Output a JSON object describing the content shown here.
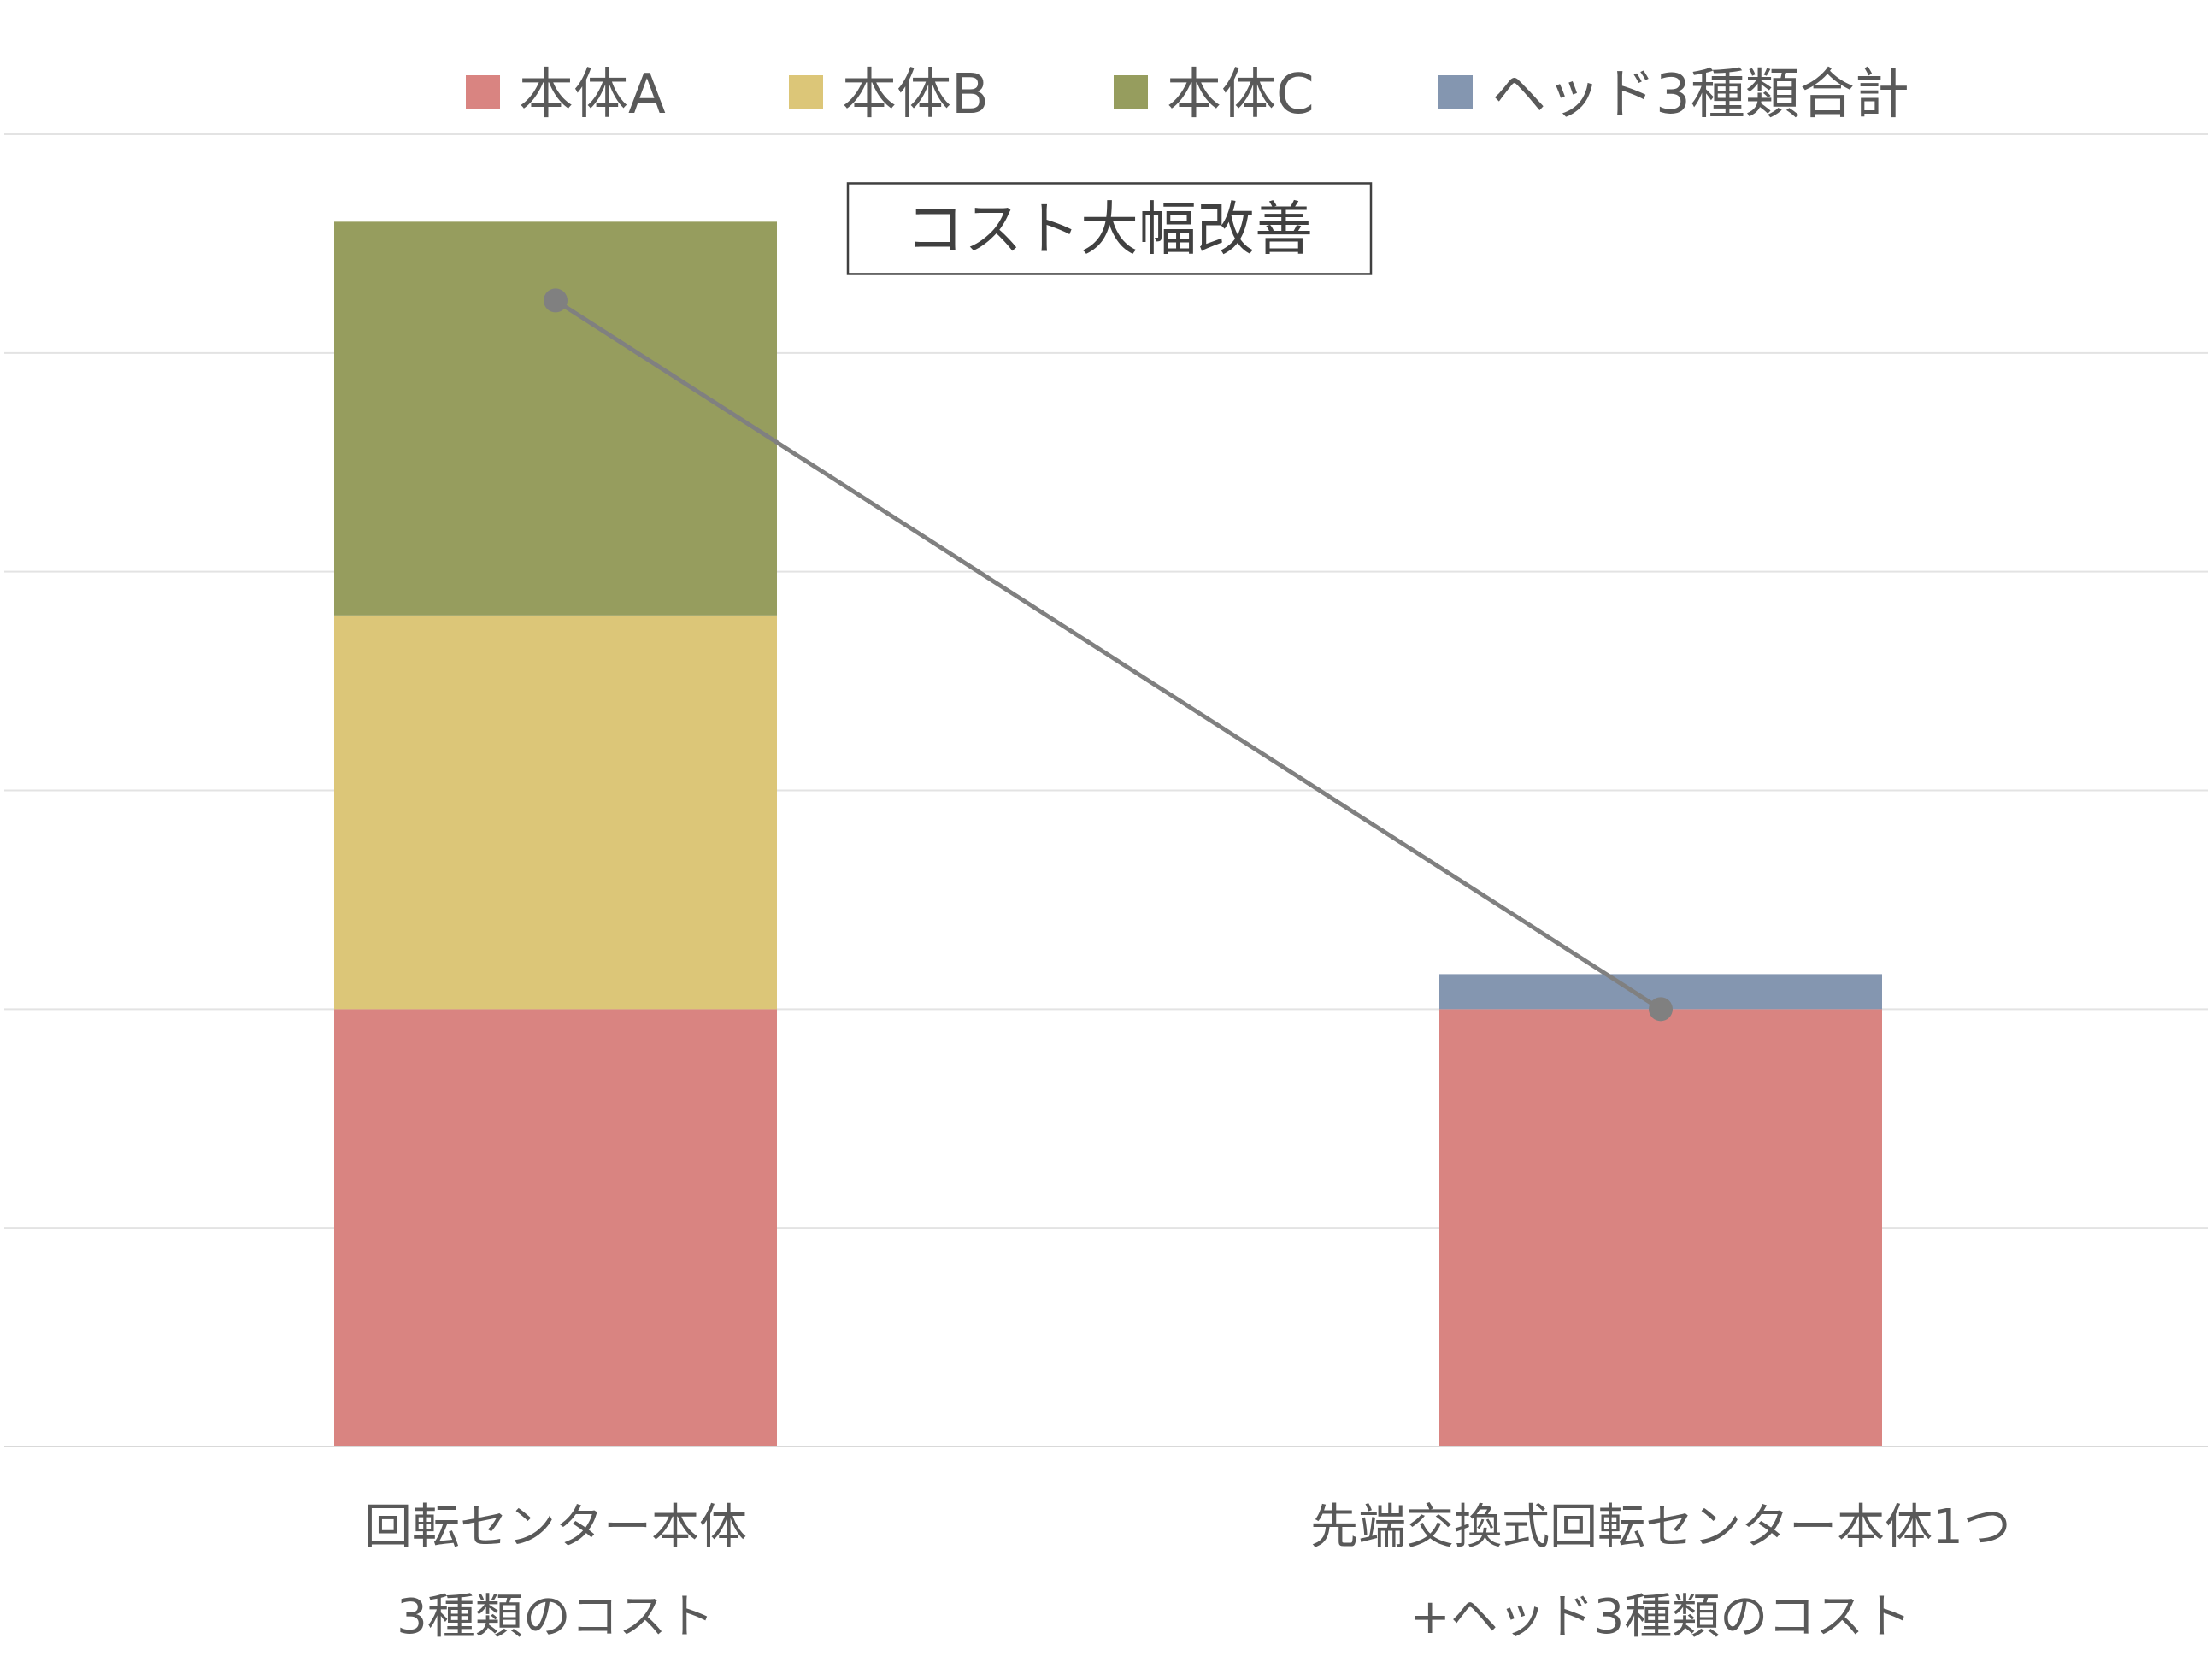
{
  "chart_data": {
    "type": "bar",
    "stacked": true,
    "categories": [
      [
        "回転センター本体",
        "3種類のコスト"
      ],
      [
        "先端交換式回転センター本体1つ",
        "+ヘッド3種類のコスト"
      ]
    ],
    "series": [
      {
        "name": "本体A",
        "color": "#d98481",
        "values": [
          100,
          100
        ]
      },
      {
        "name": "本体B",
        "color": "#dcc678",
        "values": [
          90,
          0
        ]
      },
      {
        "name": "本体C",
        "color": "#969d5e",
        "values": [
          90,
          0
        ]
      },
      {
        "name": "ヘッド3種類合計",
        "color": "#8496b0",
        "values": [
          0,
          8
        ]
      }
    ],
    "line": {
      "values": [
        262,
        100
      ],
      "color": "#808080"
    },
    "ylim": [
      0,
      300
    ],
    "gridlines": [
      50,
      100,
      150,
      200,
      250,
      300
    ],
    "grid": true,
    "legend_position": "top",
    "annotation": {
      "text": "コスト大幅改善",
      "boxed": true,
      "y": 279
    }
  }
}
